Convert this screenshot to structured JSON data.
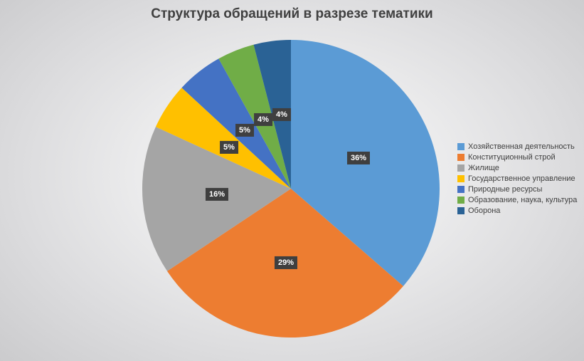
{
  "chart_data": {
    "type": "pie",
    "title": "Структура обращений в разрезе тематики",
    "categories": [
      "Хозяйственная деятельность",
      "Конституционный строй",
      "Жилище",
      "Государственное управление",
      "Природные ресурсы",
      "Образование, наука, культура",
      "Оборона"
    ],
    "values": [
      36,
      29,
      16,
      5,
      5,
      4,
      4
    ],
    "labels": [
      "36%",
      "29%",
      "16%",
      "5%",
      "5%",
      "4%",
      "4%"
    ],
    "colors": [
      "#5B9BD5",
      "#ED7D31",
      "#A5A5A5",
      "#FFC000",
      "#4472C4",
      "#70AD47",
      "#2A6295"
    ],
    "unit": "%",
    "start_angle_deg": 0,
    "direction": "clockwise",
    "legend_position": "right",
    "grid": "off",
    "title_color": "#404040",
    "legend_text_color": "#404040",
    "data_label_bg": "#3F3F3F",
    "data_label_color": "#FFFFFF"
  }
}
